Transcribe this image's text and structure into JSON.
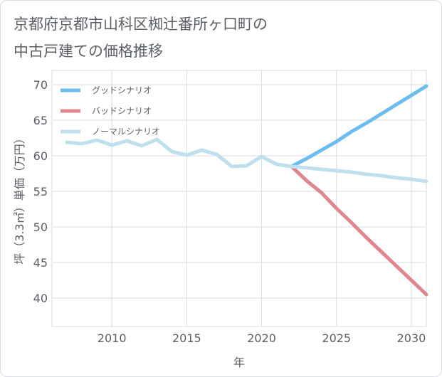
{
  "title_lines": [
    "京都府京都市山科区椥辻番所ヶ口町の",
    "中古戸建ての価格推移"
  ],
  "colors": {
    "good": "#6bbdee",
    "bad": "#e0868e",
    "normal": "#bfdfec",
    "grid": "#d4dde6"
  },
  "chart_data": {
    "type": "line",
    "xlabel": "年",
    "ylabel": "坪（3.3㎡）単価（万円）",
    "xlim": [
      2006,
      2031
    ],
    "ylim": [
      36,
      72
    ],
    "x_ticks": [
      2010,
      2015,
      2020,
      2025,
      2030
    ],
    "y_ticks": [
      40,
      45,
      50,
      55,
      60,
      65,
      70
    ],
    "grid": true,
    "legend_position": "top-left",
    "series": [
      {
        "name": "グッドシナリオ",
        "color": "#6bbdee",
        "x": [
          2022,
          2023,
          2024,
          2025,
          2026,
          2027,
          2028,
          2029,
          2030,
          2031
        ],
        "y": [
          58.5,
          59.6,
          60.8,
          62.0,
          63.4,
          64.6,
          65.9,
          67.2,
          68.5,
          69.8
        ]
      },
      {
        "name": "バッドシナリオ",
        "color": "#e0868e",
        "x": [
          2022,
          2023,
          2024,
          2025,
          2026,
          2027,
          2028,
          2029,
          2030,
          2031
        ],
        "y": [
          58.5,
          56.5,
          54.8,
          52.6,
          50.6,
          48.5,
          46.5,
          44.5,
          42.5,
          40.5
        ]
      },
      {
        "name": "ノーマルシナリオ",
        "color": "#bfdfec",
        "x": [
          2007,
          2008,
          2009,
          2010,
          2011,
          2012,
          2013,
          2014,
          2015,
          2016,
          2017,
          2018,
          2019,
          2020,
          2021,
          2022,
          2023,
          2024,
          2025,
          2026,
          2027,
          2028,
          2029,
          2030,
          2031
        ],
        "y": [
          61.9,
          61.7,
          62.2,
          61.5,
          62.1,
          61.4,
          62.3,
          60.6,
          60.1,
          60.8,
          60.2,
          58.5,
          58.6,
          59.9,
          58.8,
          58.5,
          58.3,
          58.1,
          57.9,
          57.7,
          57.4,
          57.2,
          56.9,
          56.7,
          56.4
        ]
      }
    ]
  }
}
